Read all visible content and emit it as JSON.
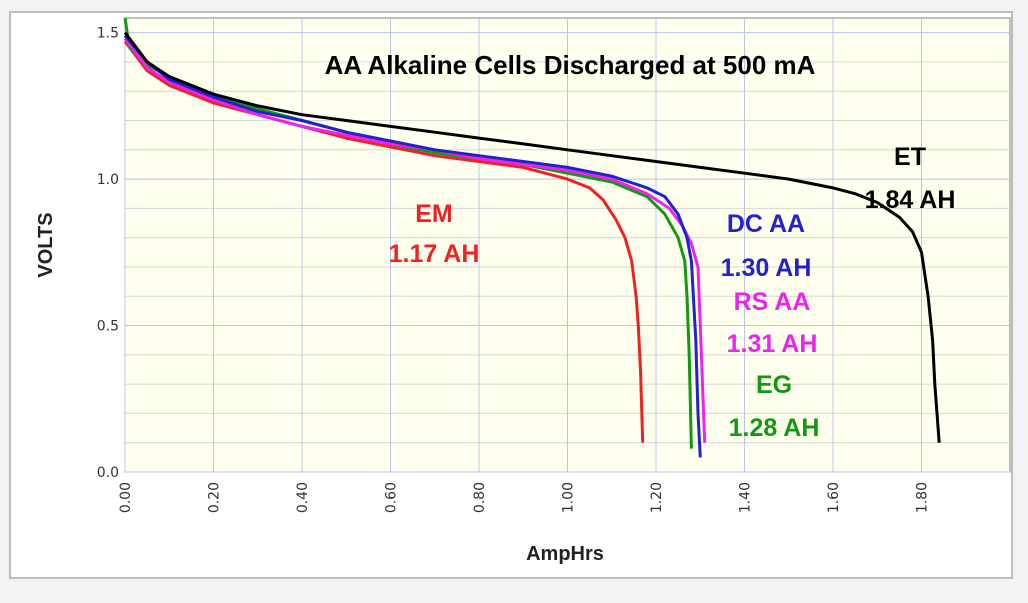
{
  "chart_data": {
    "type": "line",
    "title": "AA Alkaline Cells Discharged at 500 mA",
    "xlabel": "AmpHrs",
    "ylabel": "VOLTS",
    "xlim": [
      0,
      2.0
    ],
    "ylim": [
      0,
      1.55
    ],
    "x_ticks": [
      0,
      0.2,
      0.4,
      0.6,
      0.8,
      1.0,
      1.2,
      1.4,
      1.6,
      1.8
    ],
    "x_tick_labels": [
      "0.00",
      "0.20",
      "0.40",
      "0.60",
      "0.80",
      "1.00",
      "1.20",
      "1.40",
      "1.60",
      "1.80"
    ],
    "y_ticks": [
      0.0,
      0.5,
      1.0,
      1.5
    ],
    "y_tick_labels": [
      "0.0",
      "0.5",
      "1.0",
      "1.5"
    ],
    "grid": true,
    "series": [
      {
        "name": "ET",
        "capacity": "1.84 AH",
        "color": "#000000",
        "points": [
          [
            0,
            1.5
          ],
          [
            0.05,
            1.4
          ],
          [
            0.1,
            1.35
          ],
          [
            0.2,
            1.29
          ],
          [
            0.3,
            1.25
          ],
          [
            0.4,
            1.22
          ],
          [
            0.5,
            1.2
          ],
          [
            0.6,
            1.18
          ],
          [
            0.7,
            1.16
          ],
          [
            0.8,
            1.14
          ],
          [
            0.9,
            1.12
          ],
          [
            1.0,
            1.1
          ],
          [
            1.1,
            1.08
          ],
          [
            1.2,
            1.06
          ],
          [
            1.3,
            1.04
          ],
          [
            1.4,
            1.02
          ],
          [
            1.5,
            1.0
          ],
          [
            1.6,
            0.97
          ],
          [
            1.65,
            0.95
          ],
          [
            1.7,
            0.92
          ],
          [
            1.75,
            0.87
          ],
          [
            1.78,
            0.82
          ],
          [
            1.8,
            0.75
          ],
          [
            1.815,
            0.6
          ],
          [
            1.825,
            0.45
          ],
          [
            1.83,
            0.3
          ],
          [
            1.84,
            0.1
          ]
        ]
      },
      {
        "name": "DC AA",
        "capacity": "1.30 AH",
        "color": "#2222cc",
        "points": [
          [
            0,
            1.49
          ],
          [
            0.05,
            1.4
          ],
          [
            0.1,
            1.34
          ],
          [
            0.2,
            1.28
          ],
          [
            0.3,
            1.23
          ],
          [
            0.4,
            1.2
          ],
          [
            0.5,
            1.16
          ],
          [
            0.6,
            1.13
          ],
          [
            0.7,
            1.1
          ],
          [
            0.8,
            1.08
          ],
          [
            0.9,
            1.06
          ],
          [
            1.0,
            1.04
          ],
          [
            1.1,
            1.01
          ],
          [
            1.18,
            0.97
          ],
          [
            1.22,
            0.94
          ],
          [
            1.25,
            0.88
          ],
          [
            1.27,
            0.8
          ],
          [
            1.28,
            0.72
          ],
          [
            1.29,
            0.45
          ],
          [
            1.295,
            0.2
          ],
          [
            1.3,
            0.05
          ]
        ]
      },
      {
        "name": "RS AA",
        "capacity": "1.31 AH",
        "color": "#ee22ee",
        "points": [
          [
            0,
            1.48
          ],
          [
            0.05,
            1.38
          ],
          [
            0.1,
            1.33
          ],
          [
            0.2,
            1.27
          ],
          [
            0.3,
            1.22
          ],
          [
            0.4,
            1.18
          ],
          [
            0.5,
            1.15
          ],
          [
            0.6,
            1.12
          ],
          [
            0.7,
            1.1
          ],
          [
            0.8,
            1.07
          ],
          [
            0.9,
            1.05
          ],
          [
            1.0,
            1.03
          ],
          [
            1.1,
            1.0
          ],
          [
            1.18,
            0.95
          ],
          [
            1.23,
            0.9
          ],
          [
            1.26,
            0.84
          ],
          [
            1.28,
            0.78
          ],
          [
            1.295,
            0.7
          ],
          [
            1.3,
            0.5
          ],
          [
            1.305,
            0.3
          ],
          [
            1.31,
            0.1
          ]
        ]
      },
      {
        "name": "EG",
        "capacity": "1.28 AH",
        "color": "#119911",
        "points": [
          [
            0,
            1.55
          ],
          [
            0.01,
            1.45
          ],
          [
            0.05,
            1.39
          ],
          [
            0.1,
            1.35
          ],
          [
            0.2,
            1.29
          ],
          [
            0.3,
            1.24
          ],
          [
            0.4,
            1.2
          ],
          [
            0.5,
            1.16
          ],
          [
            0.6,
            1.12
          ],
          [
            0.7,
            1.09
          ],
          [
            0.8,
            1.07
          ],
          [
            0.9,
            1.05
          ],
          [
            1.0,
            1.02
          ],
          [
            1.1,
            0.99
          ],
          [
            1.18,
            0.94
          ],
          [
            1.22,
            0.88
          ],
          [
            1.25,
            0.8
          ],
          [
            1.265,
            0.72
          ],
          [
            1.27,
            0.6
          ],
          [
            1.275,
            0.4
          ],
          [
            1.28,
            0.08
          ]
        ]
      },
      {
        "name": "EM",
        "capacity": "1.17 AH",
        "color": "#ee2222",
        "points": [
          [
            0,
            1.47
          ],
          [
            0.05,
            1.37
          ],
          [
            0.1,
            1.32
          ],
          [
            0.2,
            1.26
          ],
          [
            0.3,
            1.22
          ],
          [
            0.4,
            1.18
          ],
          [
            0.5,
            1.14
          ],
          [
            0.6,
            1.11
          ],
          [
            0.7,
            1.08
          ],
          [
            0.8,
            1.06
          ],
          [
            0.9,
            1.04
          ],
          [
            1.0,
            1.0
          ],
          [
            1.05,
            0.97
          ],
          [
            1.08,
            0.93
          ],
          [
            1.11,
            0.86
          ],
          [
            1.13,
            0.8
          ],
          [
            1.145,
            0.72
          ],
          [
            1.155,
            0.6
          ],
          [
            1.16,
            0.5
          ],
          [
            1.165,
            0.35
          ],
          [
            1.17,
            0.1
          ]
        ]
      }
    ]
  }
}
